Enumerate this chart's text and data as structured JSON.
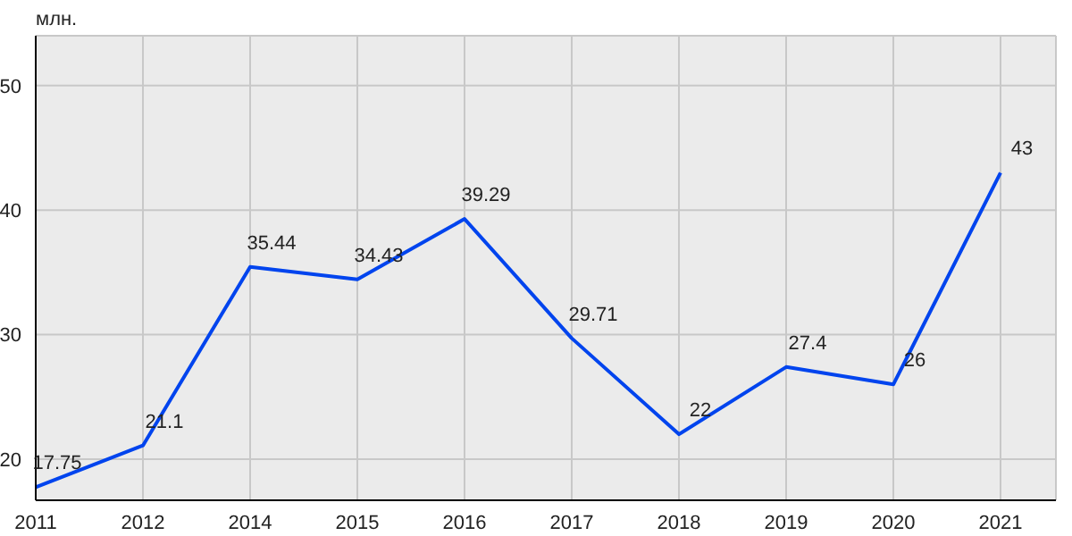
{
  "chart_data": {
    "type": "line",
    "ylabel": "млн.",
    "categories": [
      "2011",
      "2012",
      "2014",
      "2015",
      "2016",
      "2017",
      "2018",
      "2019",
      "2020",
      "2021"
    ],
    "series": [
      {
        "color": "#0044ee",
        "values": [
          17.75,
          21.1,
          35.44,
          34.43,
          39.29,
          29.71,
          22,
          27.4,
          26,
          43
        ]
      }
    ],
    "ylim": [
      16.7,
      54
    ],
    "yticks": [
      20,
      30,
      40,
      50
    ],
    "grid": true,
    "data_labels": true,
    "marker": "none",
    "line_style": "solid"
  }
}
